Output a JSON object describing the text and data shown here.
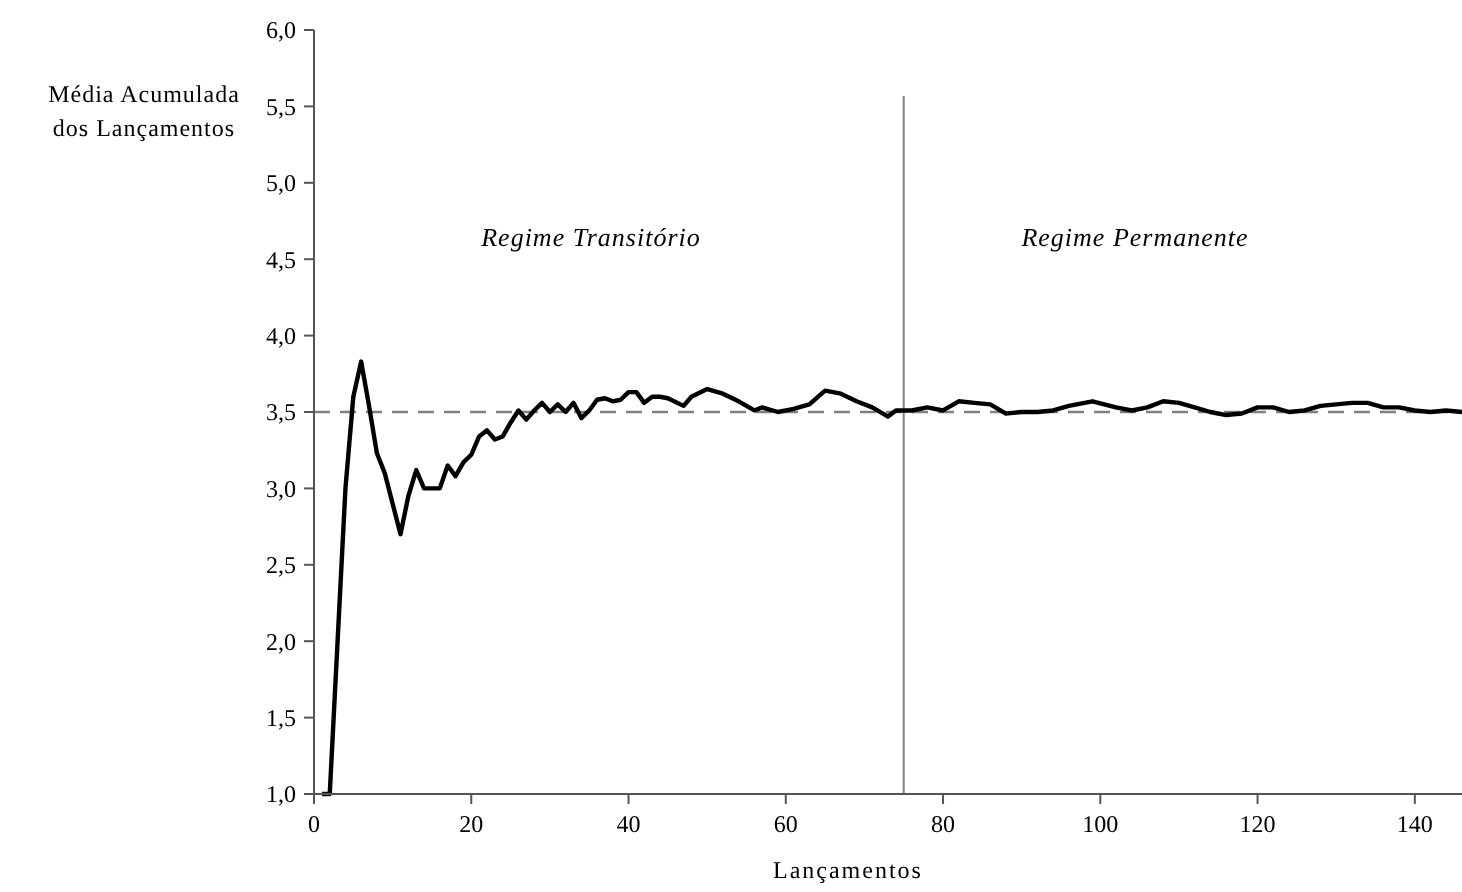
{
  "chart_data": {
    "type": "line",
    "xlabel": "Lançamentos",
    "ylabel": "Média Acumulada dos Lançamentos",
    "xlim": [
      0,
      146
    ],
    "xticks": [
      0,
      20,
      40,
      60,
      80,
      100,
      120,
      140
    ],
    "ylim": [
      1,
      6
    ],
    "yticks": [
      {
        "value": 1,
        "label": "1,0"
      },
      {
        "value": 1.5,
        "label": "1,5"
      },
      {
        "value": 2,
        "label": "2,0"
      },
      {
        "value": 2.5,
        "label": "2,5"
      },
      {
        "value": 3,
        "label": "3,0"
      },
      {
        "value": 3.5,
        "label": "3,5"
      },
      {
        "value": 4,
        "label": "4,0"
      },
      {
        "value": 4.5,
        "label": "4,5"
      },
      {
        "value": 5,
        "label": "5,0"
      },
      {
        "value": 5.5,
        "label": "5,5"
      },
      {
        "value": 6,
        "label": "6,0"
      }
    ],
    "grid": false,
    "marker": "none",
    "line_style": "solid",
    "series": [
      {
        "color": "#000000",
        "x": [
          1,
          2,
          3,
          4,
          5,
          6,
          7,
          8,
          9,
          10,
          11,
          12,
          13,
          14,
          15,
          16,
          17,
          18,
          19,
          20,
          21,
          22,
          23,
          24,
          25,
          26,
          27,
          28,
          29,
          30,
          31,
          32,
          33,
          34,
          35,
          36,
          37,
          38,
          39,
          40,
          41,
          42,
          43,
          44,
          45,
          47,
          48,
          50,
          52,
          54,
          56,
          57,
          59,
          61,
          63,
          65,
          67,
          69,
          71,
          73,
          74,
          76,
          78,
          80,
          82,
          84,
          86,
          88,
          90,
          92,
          94,
          96,
          99,
          102,
          104,
          106,
          108,
          110,
          112,
          114,
          116,
          118,
          120,
          122,
          124,
          126,
          128,
          130,
          132,
          134,
          136,
          138,
          140,
          142,
          144,
          146
        ],
        "values": [
          1.0,
          1.0,
          2.0,
          3.0,
          3.6,
          3.83,
          3.54,
          3.23,
          3.1,
          2.9,
          2.7,
          2.95,
          3.12,
          3.0,
          3.0,
          3.0,
          3.15,
          3.08,
          3.17,
          3.22,
          3.34,
          3.38,
          3.32,
          3.34,
          3.43,
          3.51,
          3.45,
          3.51,
          3.56,
          3.5,
          3.55,
          3.5,
          3.56,
          3.46,
          3.51,
          3.58,
          3.59,
          3.57,
          3.58,
          3.63,
          3.63,
          3.56,
          3.6,
          3.6,
          3.59,
          3.54,
          3.6,
          3.65,
          3.62,
          3.57,
          3.51,
          3.53,
          3.5,
          3.52,
          3.55,
          3.64,
          3.62,
          3.57,
          3.53,
          3.47,
          3.51,
          3.51,
          3.53,
          3.51,
          3.57,
          3.56,
          3.55,
          3.49,
          3.5,
          3.5,
          3.51,
          3.54,
          3.57,
          3.53,
          3.51,
          3.53,
          3.57,
          3.56,
          3.53,
          3.5,
          3.48,
          3.49,
          3.53,
          3.53,
          3.5,
          3.51,
          3.54,
          3.55,
          3.56,
          3.56,
          3.53,
          3.53,
          3.51,
          3.5,
          3.51,
          3.5
        ]
      }
    ],
    "ref_lines": [
      {
        "axis": "y",
        "value": 3.5,
        "color": "#808080",
        "line_style": "dashed"
      },
      {
        "axis": "x",
        "value": 75,
        "color": "#808080",
        "line_style": "solid"
      }
    ],
    "annotations": [
      "Regime Transitório",
      "Regime Permanente"
    ]
  }
}
